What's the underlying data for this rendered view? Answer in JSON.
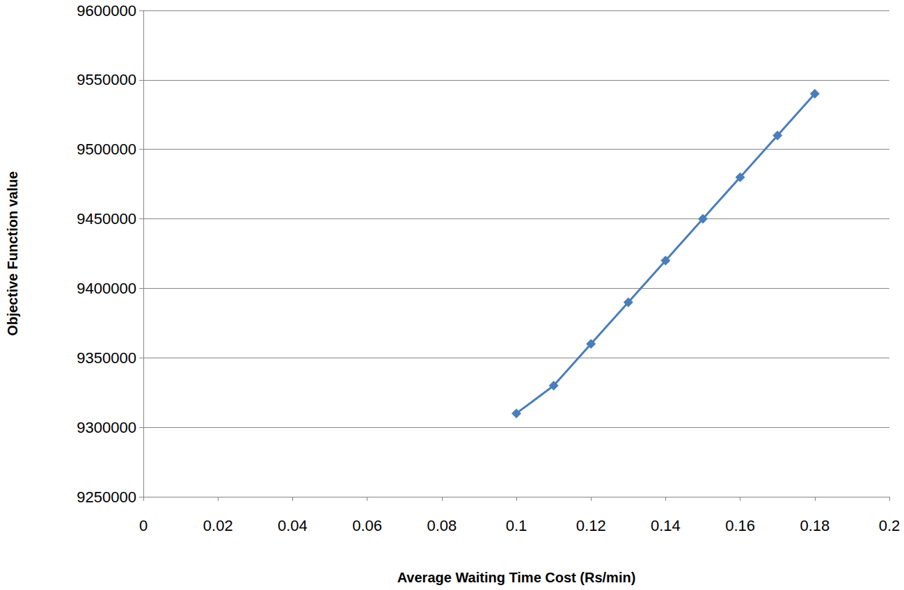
{
  "chart_data": {
    "type": "line",
    "xlabel": "Average Waiting Time Cost (Rs/min)",
    "ylabel": "Objective Function value",
    "x": [
      0.1,
      0.11,
      0.12,
      0.13,
      0.14,
      0.15,
      0.16,
      0.17,
      0.18
    ],
    "values": [
      9310000,
      9330000,
      9360000,
      9390000,
      9420000,
      9450000,
      9480000,
      9510000,
      9540000
    ],
    "color": "#4a7ebb",
    "marker": "diamond",
    "xlim": [
      0,
      0.2
    ],
    "xticks": [
      0,
      0.02,
      0.04,
      0.06,
      0.08,
      0.1,
      0.12,
      0.14,
      0.16,
      0.18,
      0.2
    ],
    "ylim": [
      9250000,
      9600000
    ],
    "yticks": [
      9250000,
      9300000,
      9350000,
      9400000,
      9450000,
      9500000,
      9550000,
      9600000
    ],
    "grid": true
  }
}
